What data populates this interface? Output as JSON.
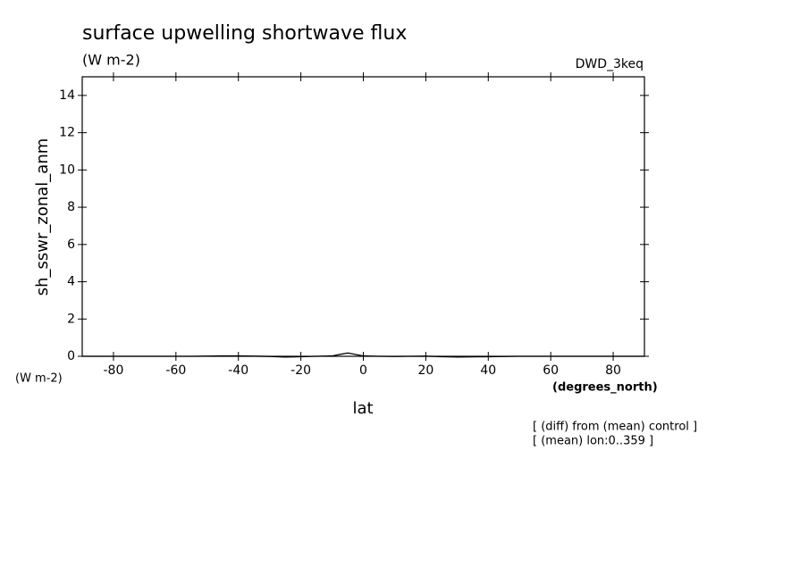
{
  "chart_data": {
    "type": "line",
    "title": "surface upwelling shortwave flux",
    "subtitle": "(W m-2)",
    "dataset": "DWD_3keq",
    "y_label": "sh_sswr_zonal_anm",
    "y_units": "(W m-2)",
    "x_label": "lat",
    "x_units": "(degrees_north)",
    "notes": [
      "[ (diff) from (mean) control ]",
      "[ (mean) lon:0..359 ]"
    ],
    "x": [
      -90,
      -85,
      -80,
      -75,
      -70,
      -65,
      -60,
      -55,
      -50,
      -45,
      -40,
      -35,
      -30,
      -25,
      -20,
      -15,
      -10,
      -5,
      0,
      5,
      10,
      15,
      20,
      25,
      30,
      35,
      40,
      45,
      50,
      55,
      60,
      65,
      70,
      75,
      80,
      85,
      90
    ],
    "series": [
      {
        "name": "sh_sswr_zonal_anm",
        "color": "#000000",
        "values": [
          0,
          0,
          0,
          0,
          0,
          0,
          0,
          0,
          0.01,
          0.02,
          0.02,
          0.01,
          -0.01,
          -0.04,
          -0.02,
          0,
          0.02,
          0.18,
          0.02,
          0,
          -0.01,
          0,
          0.01,
          -0.02,
          -0.04,
          -0.03,
          -0.02,
          -0.01,
          0,
          0,
          0,
          0,
          0,
          0,
          0,
          0,
          0
        ]
      }
    ],
    "xlim": [
      -90,
      90
    ],
    "xticks": [
      -80,
      -60,
      -40,
      -20,
      0,
      20,
      40,
      60,
      80
    ],
    "ylim": [
      0,
      15
    ],
    "yticks": [
      0,
      2,
      4,
      6,
      8,
      10,
      12,
      14
    ],
    "grid": false
  }
}
